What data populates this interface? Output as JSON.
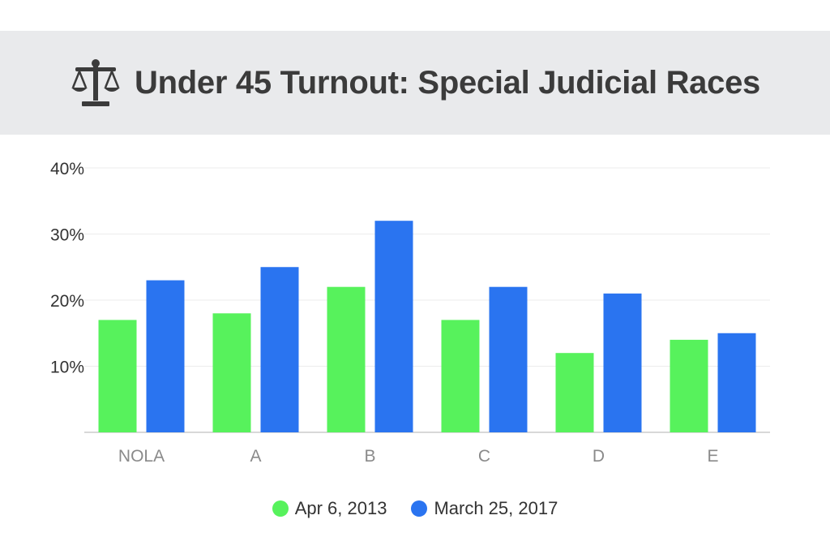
{
  "header": {
    "title": "Under 45 Turnout: Special Judicial Races",
    "icon": "scales-icon"
  },
  "colors": {
    "series_2013": "#57f25c",
    "series_2017": "#2a74f0",
    "grid": "#ececec",
    "axis": "#cccccc",
    "tick_text": "#333333",
    "category_text": "#8a8a8a"
  },
  "chart_data": {
    "type": "bar",
    "title": "Under 45 Turnout: Special Judicial Races",
    "xlabel": "",
    "ylabel": "",
    "categories": [
      "NOLA",
      "A",
      "B",
      "C",
      "D",
      "E"
    ],
    "series": [
      {
        "name": "Apr 6, 2013",
        "values": [
          17,
          18,
          22,
          17,
          12,
          14
        ]
      },
      {
        "name": "March 25, 2017",
        "values": [
          23,
          25,
          32,
          22,
          21,
          15
        ]
      }
    ],
    "ylim": [
      0,
      40
    ],
    "yticks": [
      10,
      20,
      30,
      40
    ],
    "ytick_labels": [
      "10%",
      "20%",
      "30%",
      "40%"
    ],
    "grid": true,
    "legend_position": "bottom-center"
  }
}
